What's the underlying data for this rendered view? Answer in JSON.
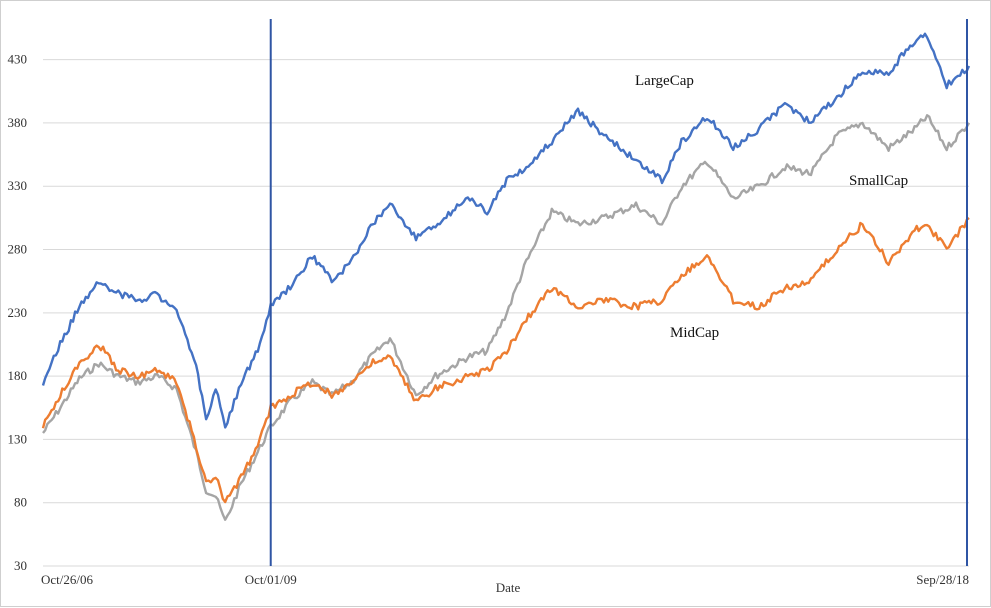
{
  "chart_data": {
    "type": "line",
    "xlabel": "Date",
    "ylabel": "",
    "ylim": [
      30,
      470
    ],
    "yticks": [
      30,
      80,
      130,
      180,
      230,
      280,
      330,
      380,
      430
    ],
    "x_tick_labels": [
      "Oct/26/06",
      "Oct/01/09",
      "Sep/28/18"
    ],
    "grid": "horizontal",
    "vertical_markers": [
      "Oct/01/09",
      "Sep/28/18"
    ],
    "colors": {
      "LargeCap": "#4472c4",
      "MidCap": "#ed7d31",
      "SmallCap": "#a5a5a5",
      "marker": "#2f55a4"
    },
    "series": [
      {
        "name": "LargeCap",
        "label_text": "LargeCap",
        "points": [
          [
            "2006-10-26",
            175
          ],
          [
            "2007-01-15",
            205
          ],
          [
            "2007-04-15",
            235
          ],
          [
            "2007-07-15",
            255
          ],
          [
            "2007-10-15",
            245
          ],
          [
            "2008-01-15",
            240
          ],
          [
            "2008-04-15",
            245
          ],
          [
            "2008-07-15",
            230
          ],
          [
            "2008-10-15",
            190
          ],
          [
            "2008-12-01",
            145
          ],
          [
            "2009-01-15",
            170
          ],
          [
            "2009-03-01",
            140
          ],
          [
            "2009-05-15",
            175
          ],
          [
            "2009-08-01",
            200
          ],
          [
            "2009-10-01",
            235
          ],
          [
            "2010-01-01",
            250
          ],
          [
            "2010-04-15",
            275
          ],
          [
            "2010-07-15",
            255
          ],
          [
            "2010-10-15",
            270
          ],
          [
            "2011-01-15",
            300
          ],
          [
            "2011-04-15",
            315
          ],
          [
            "2011-08-15",
            290
          ],
          [
            "2011-11-15",
            300
          ],
          [
            "2012-04-15",
            320
          ],
          [
            "2012-07-15",
            310
          ],
          [
            "2012-10-15",
            335
          ],
          [
            "2013-01-15",
            345
          ],
          [
            "2013-05-15",
            365
          ],
          [
            "2013-09-15",
            390
          ],
          [
            "2014-01-15",
            370
          ],
          [
            "2014-06-15",
            350
          ],
          [
            "2014-10-15",
            335
          ],
          [
            "2015-01-15",
            365
          ],
          [
            "2015-05-15",
            385
          ],
          [
            "2015-09-15",
            360
          ],
          [
            "2016-01-15",
            375
          ],
          [
            "2016-05-15",
            395
          ],
          [
            "2016-09-15",
            380
          ],
          [
            "2017-01-15",
            400
          ],
          [
            "2017-05-15",
            420
          ],
          [
            "2017-09-15",
            420
          ],
          [
            "2018-01-15",
            445
          ],
          [
            "2018-03-15",
            450
          ],
          [
            "2018-06-15",
            410
          ],
          [
            "2018-09-28",
            425
          ]
        ]
      },
      {
        "name": "SmallCap",
        "label_text": "SmallCap",
        "points": [
          [
            "2006-10-26",
            135
          ],
          [
            "2007-01-15",
            155
          ],
          [
            "2007-04-15",
            178
          ],
          [
            "2007-07-15",
            190
          ],
          [
            "2007-10-15",
            180
          ],
          [
            "2008-01-15",
            175
          ],
          [
            "2008-04-15",
            180
          ],
          [
            "2008-07-15",
            170
          ],
          [
            "2008-10-15",
            120
          ],
          [
            "2008-12-01",
            90
          ],
          [
            "2009-01-15",
            85
          ],
          [
            "2009-03-01",
            65
          ],
          [
            "2009-05-15",
            95
          ],
          [
            "2009-08-01",
            120
          ],
          [
            "2009-10-01",
            140
          ],
          [
            "2010-01-01",
            160
          ],
          [
            "2010-04-15",
            175
          ],
          [
            "2010-07-15",
            165
          ],
          [
            "2010-10-15",
            175
          ],
          [
            "2011-01-15",
            195
          ],
          [
            "2011-04-15",
            210
          ],
          [
            "2011-08-15",
            165
          ],
          [
            "2011-11-15",
            180
          ],
          [
            "2012-04-15",
            195
          ],
          [
            "2012-07-15",
            200
          ],
          [
            "2012-10-15",
            230
          ],
          [
            "2013-01-15",
            270
          ],
          [
            "2013-05-15",
            310
          ],
          [
            "2013-09-15",
            300
          ],
          [
            "2014-01-15",
            305
          ],
          [
            "2014-06-15",
            315
          ],
          [
            "2014-10-15",
            300
          ],
          [
            "2015-01-15",
            330
          ],
          [
            "2015-05-15",
            350
          ],
          [
            "2015-09-15",
            320
          ],
          [
            "2016-01-15",
            330
          ],
          [
            "2016-05-15",
            345
          ],
          [
            "2016-09-15",
            340
          ],
          [
            "2017-01-15",
            370
          ],
          [
            "2017-05-15",
            380
          ],
          [
            "2017-09-15",
            360
          ],
          [
            "2018-01-15",
            375
          ],
          [
            "2018-03-15",
            385
          ],
          [
            "2018-06-15",
            360
          ],
          [
            "2018-09-28",
            380
          ]
        ]
      },
      {
        "name": "MidCap",
        "label_text": "MidCap",
        "points": [
          [
            "2006-10-26",
            140
          ],
          [
            "2007-01-15",
            165
          ],
          [
            "2007-04-15",
            190
          ],
          [
            "2007-07-15",
            205
          ],
          [
            "2007-10-15",
            185
          ],
          [
            "2008-01-15",
            180
          ],
          [
            "2008-04-15",
            185
          ],
          [
            "2008-07-15",
            175
          ],
          [
            "2008-10-15",
            125
          ],
          [
            "2008-12-01",
            95
          ],
          [
            "2009-01-15",
            100
          ],
          [
            "2009-03-01",
            80
          ],
          [
            "2009-05-15",
            100
          ],
          [
            "2009-08-01",
            125
          ],
          [
            "2009-10-01",
            155
          ],
          [
            "2010-01-01",
            165
          ],
          [
            "2010-04-15",
            175
          ],
          [
            "2010-07-15",
            165
          ],
          [
            "2010-10-15",
            175
          ],
          [
            "2011-01-15",
            190
          ],
          [
            "2011-04-15",
            195
          ],
          [
            "2011-08-15",
            160
          ],
          [
            "2011-11-15",
            170
          ],
          [
            "2012-04-15",
            180
          ],
          [
            "2012-07-15",
            185
          ],
          [
            "2012-10-15",
            200
          ],
          [
            "2013-01-15",
            225
          ],
          [
            "2013-05-15",
            250
          ],
          [
            "2013-09-15",
            235
          ],
          [
            "2014-01-15",
            240
          ],
          [
            "2014-06-15",
            235
          ],
          [
            "2014-10-15",
            240
          ],
          [
            "2015-01-15",
            260
          ],
          [
            "2015-05-15",
            275
          ],
          [
            "2015-09-15",
            240
          ],
          [
            "2016-01-15",
            235
          ],
          [
            "2016-05-15",
            250
          ],
          [
            "2016-09-15",
            255
          ],
          [
            "2017-01-15",
            280
          ],
          [
            "2017-05-15",
            300
          ],
          [
            "2017-09-15",
            270
          ],
          [
            "2018-01-15",
            295
          ],
          [
            "2018-03-15",
            300
          ],
          [
            "2018-06-15",
            280
          ],
          [
            "2018-09-28",
            305
          ]
        ]
      }
    ]
  }
}
